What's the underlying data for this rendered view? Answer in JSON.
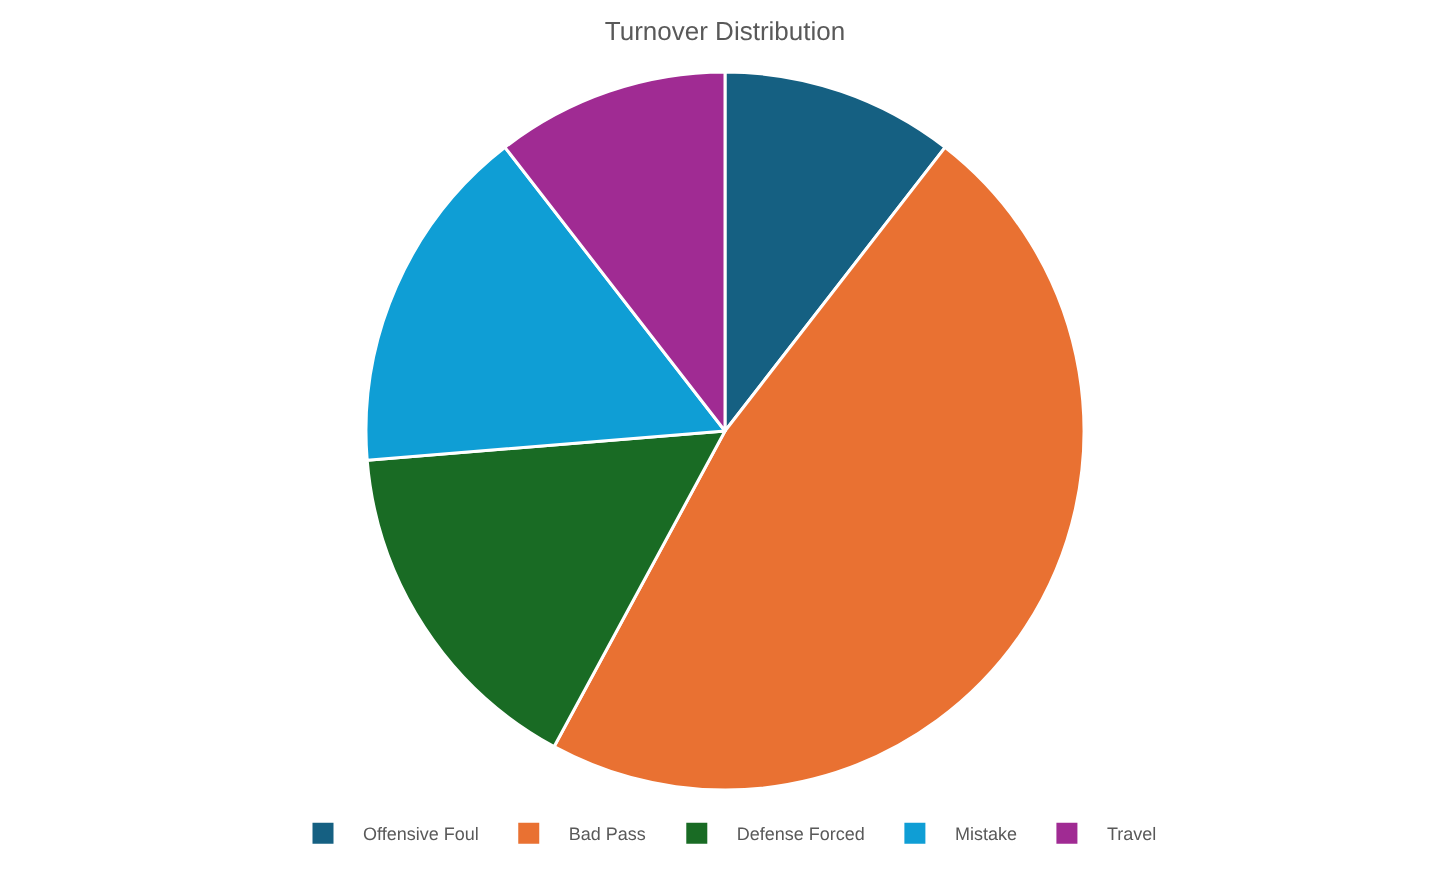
{
  "chart_data": {
    "type": "pie",
    "title": "Turnover Distribution",
    "categories": [
      "Offensive Foul",
      "Bad Pass",
      "Defense Forced",
      "Mistake",
      "Travel"
    ],
    "values": [
      10.5,
      47.4,
      15.8,
      15.8,
      10.5
    ],
    "colors": [
      "#156082",
      "#e97132",
      "#196b24",
      "#0f9ed5",
      "#a02b93"
    ],
    "legend": "bottom"
  }
}
